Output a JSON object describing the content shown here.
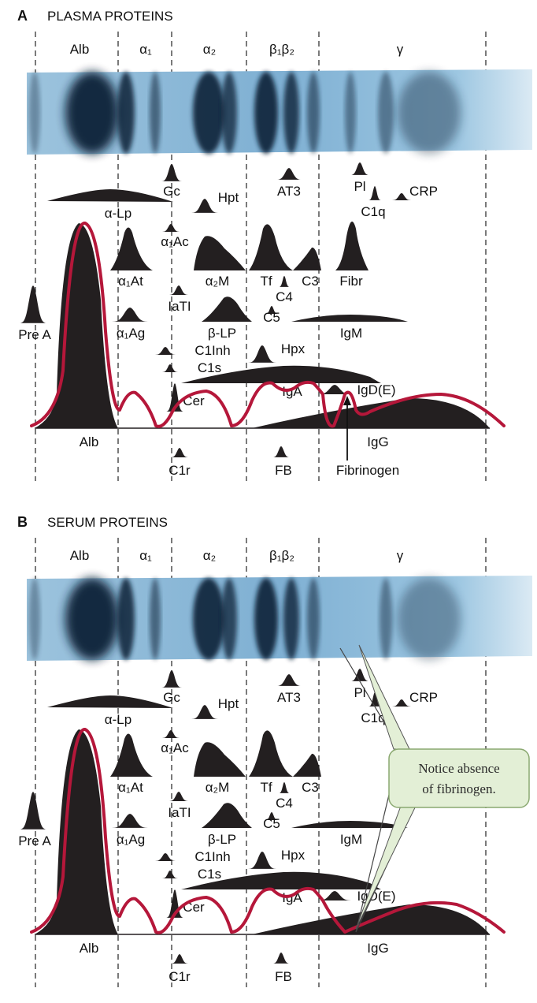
{
  "panels": [
    {
      "letter": "A",
      "title": "PLASMA PROTEINS",
      "fractions": [
        "Alb",
        "α₁",
        "α₂",
        "β₁β₂",
        "γ"
      ],
      "labels": {
        "gc": "Gc",
        "at3": "AT3",
        "pl": "Pl",
        "alpha_lp": "α-Lp",
        "hpt": "Hpt",
        "c1q": "C1q",
        "crp": "CRP",
        "alpha1_ac": "α₁Ac",
        "alpha1_at": "α₁At",
        "alpha2_m": "α₂M",
        "tf": "Tf",
        "c3": "C3",
        "fibr": "Fibr",
        "c4": "C4",
        "pre_a": "Pre A",
        "iati": "IaTI",
        "c5": "C5",
        "alpha1_ag": "α₁Ag",
        "beta_lp": "β-LP",
        "igm": "IgM",
        "c1inh": "C1Inh",
        "hpx": "Hpx",
        "c1s": "C1s",
        "iga": "IgA",
        "igde": "IgD(E)",
        "cer": "Cer",
        "alb": "Alb",
        "igg": "IgG",
        "c1r": "C1r",
        "fb": "FB",
        "fibrinogen": "Fibrinogen"
      }
    },
    {
      "letter": "B",
      "title": "SERUM PROTEINS",
      "fractions": [
        "Alb",
        "α₁",
        "α₂",
        "β₁β₂",
        "γ"
      ],
      "labels": {
        "gc": "Gc",
        "at3": "AT3",
        "pl": "Pl",
        "alpha_lp": "α-Lp",
        "hpt": "Hpt",
        "c1q": "C1q",
        "crp": "CRP",
        "alpha1_ac": "α₁Ac",
        "alpha1_at": "α₁At",
        "alpha2_m": "α₂M",
        "tf": "Tf",
        "c3": "C3",
        "c4": "C4",
        "pre_a": "Pre A",
        "iati": "IaTI",
        "c5": "C5",
        "alpha1_ag": "α₁Ag",
        "beta_lp": "β-LP",
        "igm": "IgM",
        "c1inh": "C1Inh",
        "hpx": "Hpx",
        "c1s": "C1s",
        "iga": "IgA",
        "igde": "IgD(E)",
        "cer": "Cer",
        "alb": "Alb",
        "igg": "IgG",
        "c1r": "C1r",
        "fb": "FB"
      },
      "callout": [
        "Notice absence",
        "of fibrinogen."
      ]
    }
  ],
  "colors": {
    "gel": "#8ab8d8",
    "peak": "#231f20",
    "trace": "#b5173a",
    "callout_fill": "#e3efd6",
    "callout_stroke": "#8aa870"
  }
}
